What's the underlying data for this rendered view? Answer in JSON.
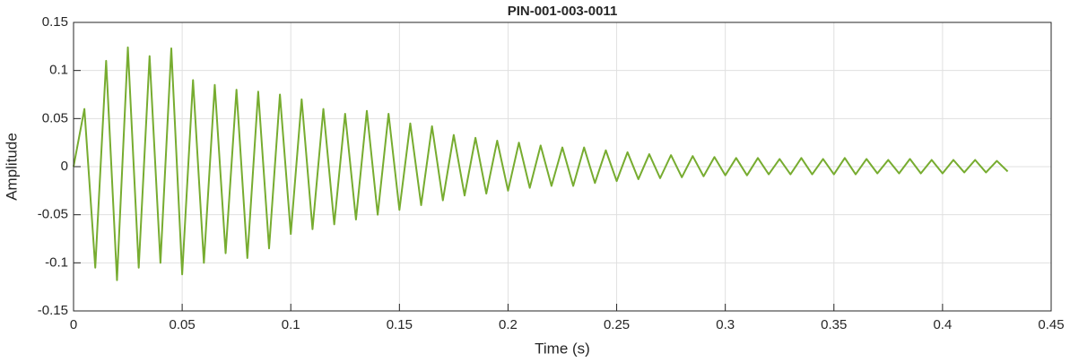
{
  "chart_data": {
    "type": "line",
    "title": "PIN-001-003-0011",
    "x_label": "Time (s)",
    "y_label": "Amplitude",
    "x": [
      0,
      0.005,
      0.01,
      0.015,
      0.02,
      0.025,
      0.03,
      0.035,
      0.04,
      0.045,
      0.05,
      0.055,
      0.06,
      0.065,
      0.07,
      0.075,
      0.08,
      0.085,
      0.09,
      0.095,
      0.1,
      0.105,
      0.11,
      0.115,
      0.12,
      0.125,
      0.13,
      0.135,
      0.14,
      0.145,
      0.15,
      0.155,
      0.16,
      0.165,
      0.17,
      0.175,
      0.18,
      0.185,
      0.19,
      0.195,
      0.2,
      0.205,
      0.21,
      0.215,
      0.22,
      0.225,
      0.23,
      0.235,
      0.24,
      0.245,
      0.25,
      0.255,
      0.26,
      0.265,
      0.27,
      0.275,
      0.28,
      0.285,
      0.29,
      0.295,
      0.3,
      0.305,
      0.31,
      0.315,
      0.32,
      0.325,
      0.33,
      0.335,
      0.34,
      0.345,
      0.35,
      0.355,
      0.36,
      0.365,
      0.37,
      0.375,
      0.38,
      0.385,
      0.39,
      0.395,
      0.4,
      0.405,
      0.41,
      0.415,
      0.42,
      0.425,
      0.43
    ],
    "series": [
      {
        "color": "#77ac30",
        "values": [
          0,
          0.06,
          -0.105,
          0.11,
          -0.118,
          0.124,
          -0.105,
          0.115,
          -0.1,
          0.123,
          -0.112,
          0.09,
          -0.1,
          0.085,
          -0.09,
          0.08,
          -0.095,
          0.078,
          -0.085,
          0.075,
          -0.07,
          0.07,
          -0.065,
          0.06,
          -0.06,
          0.055,
          -0.055,
          0.058,
          -0.05,
          0.055,
          -0.045,
          0.045,
          -0.04,
          0.042,
          -0.035,
          0.033,
          -0.03,
          0.03,
          -0.028,
          0.027,
          -0.025,
          0.025,
          -0.022,
          0.022,
          -0.02,
          0.02,
          -0.02,
          0.02,
          -0.017,
          0.017,
          -0.015,
          0.015,
          -0.013,
          0.013,
          -0.012,
          0.012,
          -0.011,
          0.011,
          -0.01,
          0.01,
          -0.009,
          0.009,
          -0.009,
          0.009,
          -0.008,
          0.008,
          -0.008,
          0.009,
          -0.008,
          0.008,
          -0.008,
          0.009,
          -0.008,
          0.008,
          -0.007,
          0.007,
          -0.007,
          0.008,
          -0.007,
          0.007,
          -0.007,
          0.007,
          -0.006,
          0.007,
          -0.006,
          0.006,
          -0.005
        ]
      }
    ],
    "xlim": [
      0,
      0.45
    ],
    "xticks": [
      0,
      0.05,
      0.1,
      0.15,
      0.2,
      0.25,
      0.3,
      0.35,
      0.4,
      0.45
    ],
    "ylim": [
      -0.15,
      0.15
    ],
    "yticks": [
      -0.15,
      -0.1,
      -0.05,
      0,
      0.05,
      0.1,
      0.15
    ],
    "grid": true
  }
}
